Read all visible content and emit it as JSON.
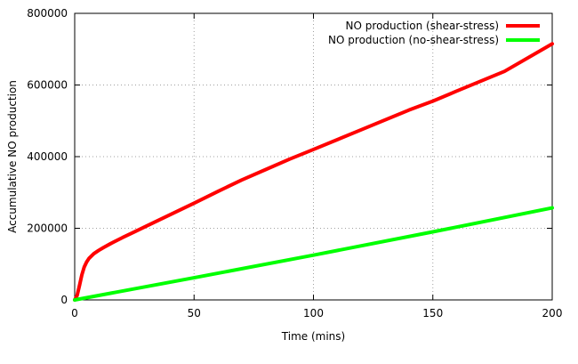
{
  "chart_data": {
    "type": "line",
    "title": "",
    "xlabel": "Time (mins)",
    "ylabel": "Accumulative NO production",
    "xlim": [
      0,
      200
    ],
    "ylim": [
      0,
      800000
    ],
    "xticks": [
      0,
      50,
      100,
      150,
      200
    ],
    "yticks": [
      0,
      200000,
      400000,
      600000,
      800000
    ],
    "grid": true,
    "legend_position": "top-right",
    "series": [
      {
        "name": "NO production (shear-stress)",
        "color": "#ff0000",
        "x": [
          0,
          1,
          2,
          3,
          4,
          5,
          6,
          8,
          10,
          12,
          15,
          20,
          25,
          30,
          40,
          50,
          60,
          70,
          80,
          90,
          100,
          120,
          140,
          150,
          160,
          180,
          200
        ],
        "y": [
          0,
          12000,
          40000,
          70000,
          92000,
          106000,
          116000,
          129000,
          138000,
          146000,
          157000,
          174000,
          190000,
          206000,
          238000,
          270000,
          303000,
          335000,
          364000,
          393000,
          420000,
          475000,
          530000,
          555000,
          583000,
          638000,
          715000
        ]
      },
      {
        "name": "NO production (no-shear-stress)",
        "color": "#00ff00",
        "x": [
          0,
          50,
          100,
          150,
          200
        ],
        "y": [
          0,
          62000,
          125000,
          190000,
          257000
        ]
      }
    ]
  }
}
